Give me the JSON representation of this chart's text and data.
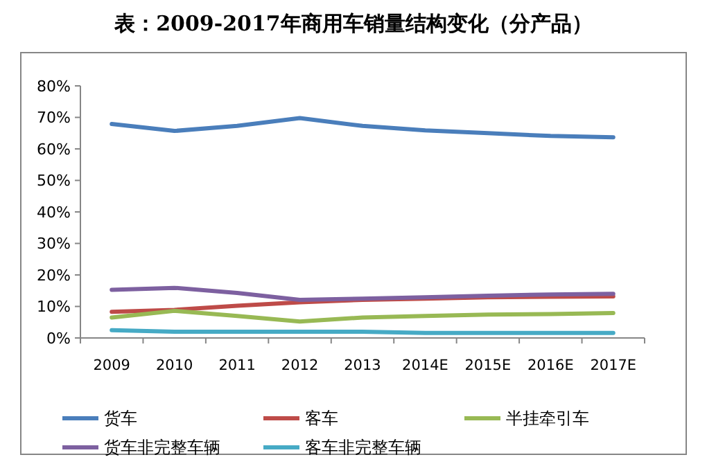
{
  "chart_data": {
    "type": "line",
    "title": "表：2009-2017年商用车销量结构变化（分产品）",
    "categories": [
      "2009",
      "2010",
      "2011",
      "2012",
      "2013",
      "2014E",
      "2015E",
      "2016E",
      "2017E"
    ],
    "ylim": [
      0,
      80
    ],
    "yticks": [
      {
        "value": 0,
        "label": "0%"
      },
      {
        "value": 10,
        "label": "10%"
      },
      {
        "value": 20,
        "label": "20%"
      },
      {
        "value": 30,
        "label": "30%"
      },
      {
        "value": 40,
        "label": "40%"
      },
      {
        "value": 50,
        "label": "50%"
      },
      {
        "value": 60,
        "label": "60%"
      },
      {
        "value": 70,
        "label": "70%"
      },
      {
        "value": 80,
        "label": "80%"
      }
    ],
    "grid": false,
    "legend": "bottom",
    "marker": "none",
    "line_style": "solid",
    "series": [
      {
        "name": "货车",
        "color": "#4a7ebb",
        "values": [
          67.9,
          65.7,
          67.3,
          69.8,
          67.3,
          65.9,
          65.0,
          64.1,
          63.7
        ]
      },
      {
        "name": "客车",
        "color": "#be4b48",
        "values": [
          8.3,
          8.9,
          10.2,
          11.3,
          12.1,
          12.5,
          12.9,
          13.1,
          13.2
        ]
      },
      {
        "name": "半挂牵引车",
        "color": "#98b954",
        "values": [
          6.5,
          8.6,
          7.0,
          5.2,
          6.5,
          7.0,
          7.4,
          7.6,
          7.9
        ]
      },
      {
        "name": "货车非完整车辆",
        "color": "#7d60a0",
        "values": [
          15.3,
          15.9,
          14.3,
          12.1,
          12.5,
          12.9,
          13.4,
          13.8,
          14.0
        ]
      },
      {
        "name": "客车非完整车辆",
        "color": "#46aac5",
        "values": [
          2.5,
          2.0,
          2.0,
          2.0,
          2.0,
          1.6,
          1.6,
          1.6,
          1.6
        ]
      }
    ]
  }
}
